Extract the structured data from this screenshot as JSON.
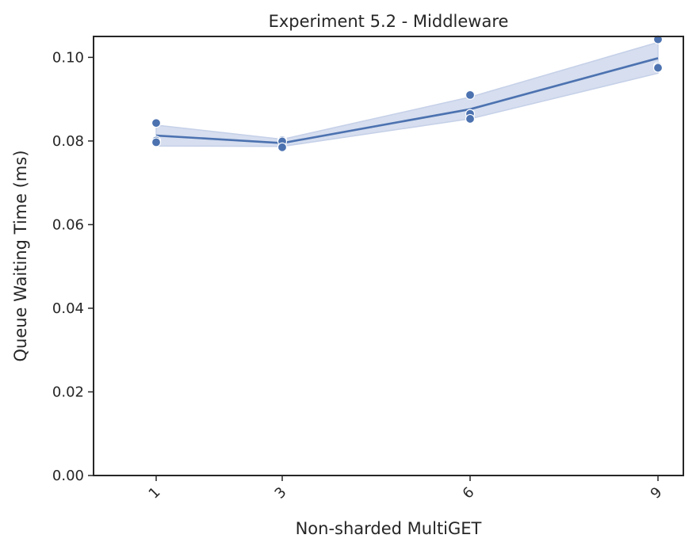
{
  "chart_data": {
    "type": "line",
    "title": "Experiment 5.2 - Middleware",
    "xlabel": "Non-sharded MultiGET",
    "ylabel": "Queue Waiting Time (ms)",
    "x": [
      1,
      3,
      6,
      9
    ],
    "xticks": [
      "1",
      "3",
      "6",
      "9"
    ],
    "ylim": [
      0,
      0.105
    ],
    "yticks": [
      "0.00",
      "0.02",
      "0.04",
      "0.06",
      "0.08",
      "0.10"
    ],
    "ytick_values": [
      0,
      0.02,
      0.04,
      0.06,
      0.08,
      0.1
    ],
    "grid": false,
    "color": "#4c72b0",
    "band_color": "#c5d0e8",
    "series": [
      {
        "mean": [
          0.0813,
          0.0795,
          0.0876,
          0.0998
        ],
        "ci_low": [
          0.0788,
          0.0787,
          0.0853,
          0.0962
        ],
        "ci_high": [
          0.0838,
          0.0804,
          0.0905,
          0.1036
        ],
        "points": [
          [
            1,
            0.0843
          ],
          [
            1,
            0.0801
          ],
          [
            1,
            0.0797
          ],
          [
            3,
            0.0802
          ],
          [
            3,
            0.0799
          ],
          [
            3,
            0.0785
          ],
          [
            6,
            0.091
          ],
          [
            6,
            0.0865
          ],
          [
            6,
            0.0853
          ],
          [
            9,
            0.1043
          ],
          [
            9,
            0.0978
          ],
          [
            9,
            0.0975
          ]
        ]
      }
    ]
  }
}
